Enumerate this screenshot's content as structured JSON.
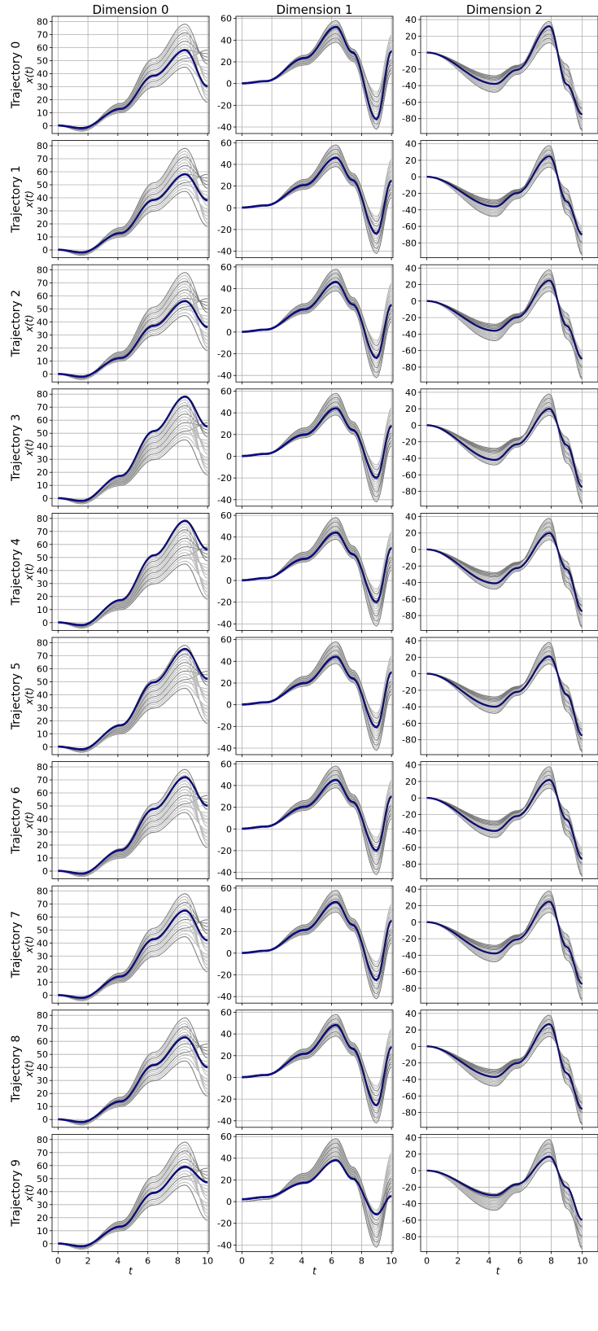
{
  "chart_data": {
    "type": "line",
    "column_titles": [
      "Dimension 0",
      "Dimension 1",
      "Dimension 2"
    ],
    "row_titles": [
      "Trajectory 0",
      "Trajectory 1",
      "Trajectory 2",
      "Trajectory 3",
      "Trajectory 4",
      "Trajectory 5",
      "Trajectory 6",
      "Trajectory 7",
      "Trajectory 8",
      "Trajectory 9"
    ],
    "ylabel": "x(t)",
    "xlabel": "t",
    "x_ticks": [
      0,
      2,
      4,
      6,
      8,
      10
    ],
    "xlim": [
      -0.4,
      10.1
    ],
    "grid": true,
    "columns": [
      {
        "ylim": [
          -6,
          84
        ],
        "y_ticks": [
          0,
          10,
          20,
          30,
          40,
          50,
          60,
          70,
          80
        ],
        "peaks": [
          58,
          58,
          56,
          78,
          78,
          75,
          72,
          65,
          63,
          59
        ],
        "ends": [
          30,
          38,
          36,
          55,
          56,
          52,
          50,
          42,
          40,
          47
        ]
      },
      {
        "ylim": [
          -46,
          62
        ],
        "y_ticks": [
          -40,
          -20,
          0,
          20,
          40,
          60
        ],
        "peaks": [
          52,
          46,
          46,
          44,
          44,
          44,
          45,
          47,
          48,
          38
        ],
        "troughs": [
          -33,
          -24,
          -24,
          -20,
          -20,
          -21,
          -20,
          -25,
          -26,
          -12
        ],
        "ends": [
          30,
          25,
          25,
          28,
          30,
          30,
          30,
          30,
          28,
          5
        ],
        "starts": [
          0,
          0,
          0,
          0,
          0,
          0,
          0,
          0,
          0,
          2
        ]
      },
      {
        "ylim": [
          -98,
          44
        ],
        "y_ticks": [
          -80,
          -60,
          -40,
          -20,
          0,
          20,
          40
        ],
        "troughs": [
          -38,
          -36,
          -36,
          -42,
          -41,
          -40,
          -40,
          -38,
          -37,
          -30
        ],
        "peaks": [
          32,
          25,
          25,
          20,
          20,
          21,
          22,
          25,
          27,
          17
        ],
        "ends": [
          -75,
          -70,
          -70,
          -75,
          -75,
          -75,
          -74,
          -75,
          -76,
          -60
        ]
      }
    ],
    "colors": {
      "truth": "#0000cc",
      "mean": "#1a1a1a",
      "samples_light": "#b8b8b8",
      "samples_dark": "#7a7a7a"
    }
  }
}
